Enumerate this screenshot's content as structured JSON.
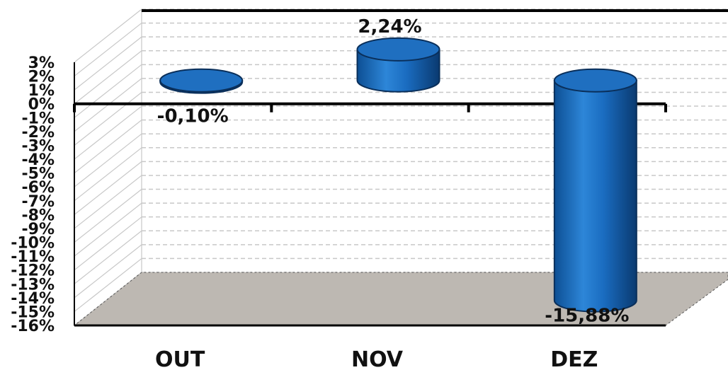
{
  "chart_data": {
    "type": "bar",
    "style": "3d-cylinder",
    "categories": [
      "OUT",
      "NOV",
      "DEZ"
    ],
    "values": [
      -0.1,
      2.24,
      -15.88
    ],
    "data_labels": [
      "-0,10%",
      "2,24%",
      "-15,88%"
    ],
    "ylim": [
      -16,
      3
    ],
    "yticks": [
      3,
      2,
      1,
      0,
      -1,
      -2,
      -3,
      -4,
      -5,
      -6,
      -7,
      -8,
      -9,
      -10,
      -11,
      -12,
      -13,
      -14,
      -15,
      -16
    ],
    "ytick_labels": [
      "3%",
      "2%",
      "1%",
      "0%",
      "-1%",
      "-2%",
      "-3%",
      "-4%",
      "-5%",
      "-6%",
      "-7%",
      "-8%",
      "-9%",
      "-10%",
      "-11%",
      "-12%",
      "-13%",
      "-14%",
      "-15%",
      "-16%"
    ],
    "grid": true,
    "legend": "none",
    "colors": {
      "bar": "#1f6fc0",
      "bar_dark": "#0b3f78",
      "bar_light": "#4e9be0",
      "floor": "#bdb8b2",
      "gridline": "#c8c8c8",
      "axis": "#000000"
    }
  }
}
